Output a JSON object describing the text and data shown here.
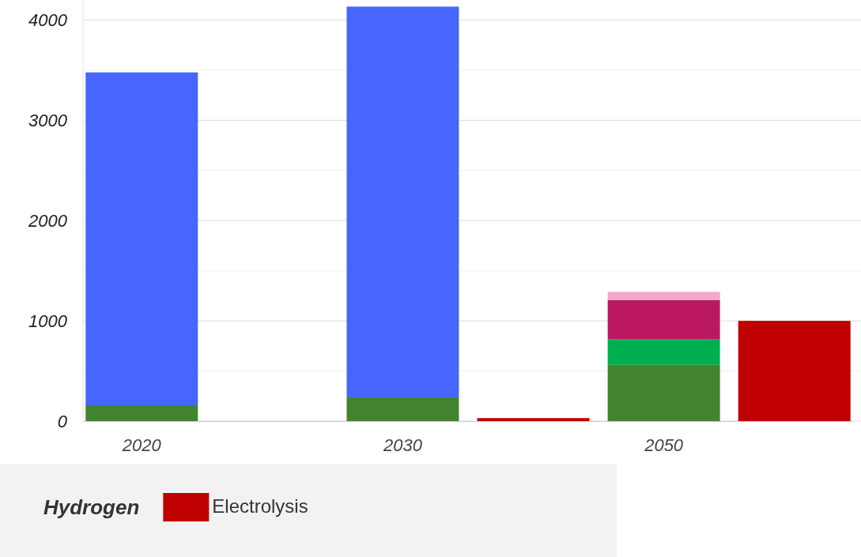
{
  "chart_data": {
    "type": "bar",
    "stacked": true,
    "categories": [
      "2020",
      null,
      "2030",
      null,
      "2050",
      null
    ],
    "series": [
      {
        "color": "#43822f",
        "values": [
          158,
          null,
          237,
          null,
          561,
          null
        ]
      },
      {
        "color": "#4766ff",
        "values": [
          3320,
          null,
          3897,
          null,
          null,
          null
        ]
      },
      {
        "color": "#00b050",
        "values": [
          null,
          null,
          null,
          null,
          253,
          null
        ]
      },
      {
        "color": "#bc1862",
        "values": [
          null,
          null,
          null,
          null,
          395,
          null
        ]
      },
      {
        "color": "#f4a6cc",
        "values": [
          null,
          null,
          null,
          null,
          80,
          null
        ]
      },
      {
        "name": "Electrolysis",
        "color": "#c00000",
        "values": [
          null,
          0,
          null,
          30,
          null,
          1000
        ]
      }
    ],
    "ylim": [
      0,
      4200
    ],
    "yticks": [
      0,
      {
        "value": 500,
        "label": null
      },
      1000,
      {
        "value": 1500,
        "label": null
      },
      2000,
      {
        "value": 2500,
        "label": null
      },
      3000,
      {
        "value": 3500,
        "label": null
      },
      4000
    ],
    "grid": true,
    "legend": "bottom left",
    "legend_title": "Hydrogen"
  }
}
